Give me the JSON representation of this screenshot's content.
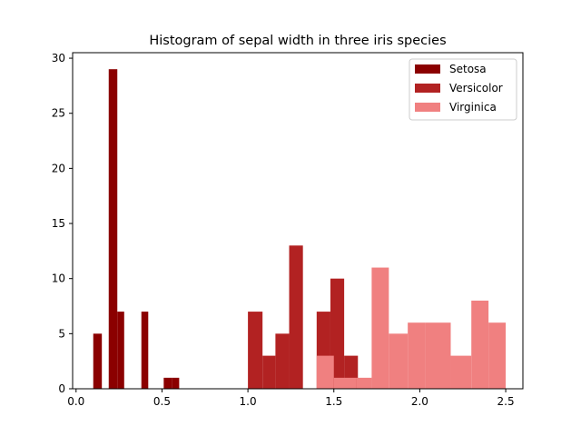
{
  "chart_data": {
    "type": "bar",
    "title": "Histogram of sepal width in three iris species",
    "xlabel": "",
    "ylabel": "",
    "xlim": [
      -0.02,
      2.6
    ],
    "ylim": [
      0,
      30.5
    ],
    "xticks": [
      0.0,
      0.5,
      1.0,
      1.5,
      2.0,
      2.5
    ],
    "xtick_labels": [
      "0.0",
      "0.5",
      "1.0",
      "1.5",
      "2.0",
      "2.5"
    ],
    "yticks": [
      0,
      5,
      10,
      15,
      20,
      25,
      30
    ],
    "ytick_labels": [
      "0",
      "5",
      "10",
      "15",
      "20",
      "25",
      "30"
    ],
    "grid": false,
    "legend_position": "top-right",
    "series": [
      {
        "name": "Setosa",
        "color": "#8b0000",
        "bins": [
          {
            "x0": 0.1,
            "x1": 0.15,
            "count": 5
          },
          {
            "x0": 0.15,
            "x1": 0.19,
            "count": 0
          },
          {
            "x0": 0.19,
            "x1": 0.24,
            "count": 29
          },
          {
            "x0": 0.24,
            "x1": 0.28,
            "count": 7
          },
          {
            "x0": 0.28,
            "x1": 0.33,
            "count": 0
          },
          {
            "x0": 0.33,
            "x1": 0.38,
            "count": 0
          },
          {
            "x0": 0.38,
            "x1": 0.42,
            "count": 7
          },
          {
            "x0": 0.42,
            "x1": 0.47,
            "count": 0
          },
          {
            "x0": 0.47,
            "x1": 0.51,
            "count": 0
          },
          {
            "x0": 0.51,
            "x1": 0.56,
            "count": 1
          },
          {
            "x0": 0.56,
            "x1": 0.6,
            "count": 1
          }
        ]
      },
      {
        "name": "Versicolor",
        "color": "#b22222",
        "bins": [
          {
            "x0": 1.0,
            "x1": 1.085,
            "count": 7
          },
          {
            "x0": 1.085,
            "x1": 1.16,
            "count": 3
          },
          {
            "x0": 1.16,
            "x1": 1.24,
            "count": 5
          },
          {
            "x0": 1.24,
            "x1": 1.32,
            "count": 13
          },
          {
            "x0": 1.32,
            "x1": 1.4,
            "count": 0
          },
          {
            "x0": 1.4,
            "x1": 1.48,
            "count": 7
          },
          {
            "x0": 1.48,
            "x1": 1.56,
            "count": 10
          },
          {
            "x0": 1.56,
            "x1": 1.64,
            "count": 3
          },
          {
            "x0": 1.64,
            "x1": 1.72,
            "count": 0
          },
          {
            "x0": 1.72,
            "x1": 1.8,
            "count": 1
          }
        ]
      },
      {
        "name": "Virginica",
        "color": "#f08080",
        "bins": [
          {
            "x0": 1.4,
            "x1": 1.5,
            "count": 3
          },
          {
            "x0": 1.5,
            "x1": 1.63,
            "count": 1
          },
          {
            "x0": 1.63,
            "x1": 1.72,
            "count": 1
          },
          {
            "x0": 1.72,
            "x1": 1.82,
            "count": 11
          },
          {
            "x0": 1.82,
            "x1": 1.93,
            "count": 5
          },
          {
            "x0": 1.93,
            "x1": 2.03,
            "count": 6
          },
          {
            "x0": 2.03,
            "x1": 2.18,
            "count": 6
          },
          {
            "x0": 2.18,
            "x1": 2.3,
            "count": 3
          },
          {
            "x0": 2.3,
            "x1": 2.4,
            "count": 8
          },
          {
            "x0": 2.4,
            "x1": 2.5,
            "count": 6
          }
        ]
      }
    ]
  }
}
